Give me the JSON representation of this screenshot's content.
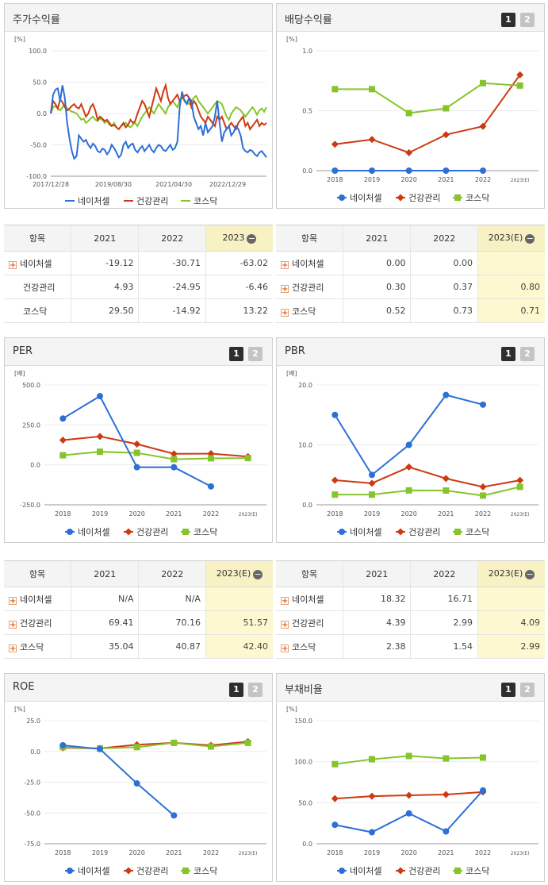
{
  "legend": {
    "s1": "네이처셀",
    "s2": "건강관리",
    "s3": "코스닥"
  },
  "colors": {
    "s1": "#2d6fd6",
    "s2": "#cd3a12",
    "s3": "#86c42e"
  },
  "toggle": {
    "b1": "1",
    "b2": "2"
  },
  "tables": [
    {
      "headers": [
        "항목",
        "2021",
        "2022",
        "2023"
      ],
      "minus": "−",
      "rows": [
        {
          "label": "네이처셀",
          "plus": true,
          "values": [
            "-19.12",
            "-30.71",
            "-63.02"
          ]
        },
        {
          "label": "건강관리",
          "plus": false,
          "values": [
            "4.93",
            "-24.95",
            "-6.46"
          ]
        },
        {
          "label": "코스닥",
          "plus": false,
          "values": [
            "29.50",
            "-14.92",
            "13.22"
          ]
        }
      ]
    },
    {
      "headers": [
        "항목",
        "2021",
        "2022",
        "2023(E)"
      ],
      "minus": "−",
      "rows": [
        {
          "label": "네이처셀",
          "plus": true,
          "values": [
            "0.00",
            "0.00",
            ""
          ]
        },
        {
          "label": "건강관리",
          "plus": true,
          "values": [
            "0.30",
            "0.37",
            "0.80"
          ]
        },
        {
          "label": "코스닥",
          "plus": true,
          "values": [
            "0.52",
            "0.73",
            "0.71"
          ]
        }
      ]
    },
    {
      "headers": [
        "항목",
        "2021",
        "2022",
        "2023(E)"
      ],
      "minus": "−",
      "rows": [
        {
          "label": "네이처셀",
          "plus": true,
          "values": [
            "N/A",
            "N/A",
            ""
          ]
        },
        {
          "label": "건강관리",
          "plus": true,
          "values": [
            "69.41",
            "70.16",
            "51.57"
          ]
        },
        {
          "label": "코스닥",
          "plus": true,
          "values": [
            "35.04",
            "40.87",
            "42.40"
          ]
        }
      ]
    },
    {
      "headers": [
        "항목",
        "2021",
        "2022",
        "2023(E)"
      ],
      "minus": "−",
      "rows": [
        {
          "label": "네이처셀",
          "plus": true,
          "values": [
            "18.32",
            "16.71",
            ""
          ]
        },
        {
          "label": "건강관리",
          "plus": true,
          "values": [
            "4.39",
            "2.99",
            "4.09"
          ]
        },
        {
          "label": "코스닥",
          "plus": true,
          "values": [
            "2.38",
            "1.54",
            "2.99"
          ]
        }
      ]
    }
  ],
  "chart_data": [
    {
      "type": "line",
      "title": "주가수익률",
      "unit": "[%]",
      "ylim": [
        -100,
        100
      ],
      "yticks": [
        "100.0",
        "50.0",
        "0.0",
        "-50.0",
        "-100.0"
      ],
      "xtick_labels": [
        "2017/12/28",
        "2019/08/30",
        "2021/04/30",
        "2022/12/29"
      ],
      "series": [
        {
          "name": "네이처셀",
          "values": [
            0,
            30,
            38,
            40,
            20,
            45,
            25,
            -15,
            -40,
            -60,
            -72,
            -68,
            -35,
            -40,
            -45,
            -42,
            -50,
            -55,
            -48,
            -52,
            -60,
            -62,
            -56,
            -58,
            -65,
            -60,
            -50,
            -55,
            -62,
            -70,
            -66,
            -50,
            -45,
            -55,
            -50,
            -48,
            -58,
            -62,
            -56,
            -52,
            -60,
            -55,
            -50,
            -58,
            -62,
            -55,
            -50,
            -52,
            -58,
            -60,
            -55,
            -50,
            -58,
            -55,
            -45,
            10,
            35,
            20,
            15,
            25,
            20,
            -5,
            -15,
            -25,
            -20,
            -35,
            -15,
            -30,
            -25,
            -20,
            -5,
            20,
            -15,
            -45,
            -30,
            -25,
            -20,
            -35,
            -30,
            -20,
            -25,
            -35,
            -55,
            -60,
            -62,
            -58,
            -60,
            -65,
            -68,
            -62,
            -60,
            -65,
            -70
          ]
        },
        {
          "name": "건강관리",
          "values": [
            0,
            20,
            15,
            8,
            22,
            18,
            10,
            5,
            8,
            12,
            15,
            10,
            8,
            15,
            5,
            -5,
            0,
            10,
            15,
            5,
            -10,
            -5,
            -8,
            -12,
            -10,
            -15,
            -20,
            -18,
            -22,
            -25,
            -20,
            -15,
            -22,
            -18,
            -10,
            -15,
            -12,
            0,
            10,
            20,
            15,
            5,
            -5,
            10,
            25,
            40,
            30,
            20,
            35,
            45,
            25,
            15,
            20,
            25,
            30,
            20,
            25,
            28,
            30,
            25,
            10,
            20,
            15,
            5,
            -5,
            -10,
            -15,
            -5,
            -10,
            -15,
            -20,
            -5,
            -10,
            -5,
            -15,
            -25,
            -20,
            -15,
            -20,
            -25,
            -15,
            -10,
            -5,
            -20,
            -15,
            -25,
            -20,
            -15,
            -10,
            -20,
            -15,
            -18,
            -15
          ]
        },
        {
          "name": "코스닥",
          "values": [
            0,
            10,
            12,
            8,
            5,
            10,
            15,
            8,
            5,
            3,
            2,
            0,
            -5,
            -10,
            -8,
            -15,
            -12,
            -8,
            -5,
            -10,
            -12,
            -8,
            -10,
            -15,
            -12,
            -18,
            -20,
            -15,
            -22,
            -25,
            -20,
            -18,
            -15,
            -20,
            -22,
            -18,
            -15,
            -20,
            -12,
            -5,
            0,
            5,
            10,
            5,
            0,
            8,
            15,
            10,
            5,
            0,
            10,
            15,
            20,
            15,
            10,
            20,
            25,
            22,
            18,
            15,
            20,
            25,
            28,
            20,
            15,
            10,
            5,
            0,
            5,
            10,
            15,
            20,
            18,
            15,
            5,
            -5,
            -10,
            0,
            5,
            10,
            8,
            5,
            0,
            -5,
            0,
            5,
            10,
            5,
            -2,
            5,
            8,
            3,
            10
          ]
        }
      ]
    },
    {
      "type": "line",
      "title": "배당수익률",
      "unit": "[%]",
      "categories": [
        "2018",
        "2019",
        "2020",
        "2021",
        "2022",
        "2023(E)"
      ],
      "ylim": [
        0,
        1.0
      ],
      "yticks": [
        "1.0",
        "0.5",
        "0.0"
      ],
      "series": [
        {
          "name": "네이처셀",
          "values": [
            0.0,
            0.0,
            0.0,
            0.0,
            0.0,
            null
          ]
        },
        {
          "name": "건강관리",
          "values": [
            0.22,
            0.26,
            0.15,
            0.3,
            0.37,
            0.8
          ]
        },
        {
          "name": "코스닥",
          "values": [
            0.68,
            0.68,
            0.48,
            0.52,
            0.73,
            0.71
          ]
        }
      ]
    },
    {
      "type": "line",
      "title": "PER",
      "unit": "[배]",
      "categories": [
        "2018",
        "2019",
        "2020",
        "2021",
        "2022",
        "2023(E)"
      ],
      "ylim": [
        -250,
        500
      ],
      "yticks": [
        "500.0",
        "250.0",
        "0.0",
        "-250.0"
      ],
      "series": [
        {
          "name": "네이처셀",
          "values": [
            290,
            430,
            -15,
            -15,
            -135,
            null
          ]
        },
        {
          "name": "건강관리",
          "values": [
            155,
            178,
            130,
            69.41,
            70.16,
            51.57
          ]
        },
        {
          "name": "코스닥",
          "values": [
            60,
            82,
            75,
            35.04,
            40.87,
            42.4
          ]
        }
      ]
    },
    {
      "type": "line",
      "title": "PBR",
      "unit": "[배]",
      "categories": [
        "2018",
        "2019",
        "2020",
        "2021",
        "2022",
        "2023(E)"
      ],
      "ylim": [
        0,
        20
      ],
      "yticks": [
        "20.0",
        "10.0",
        "0.0"
      ],
      "series": [
        {
          "name": "네이처셀",
          "values": [
            15.0,
            5.0,
            10.0,
            18.32,
            16.71,
            null
          ]
        },
        {
          "name": "건강관리",
          "values": [
            4.1,
            3.6,
            6.3,
            4.39,
            2.99,
            4.09
          ]
        },
        {
          "name": "코스닥",
          "values": [
            1.7,
            1.7,
            2.4,
            2.38,
            1.54,
            2.99
          ]
        }
      ]
    },
    {
      "type": "line",
      "title": "ROE",
      "unit": "[%]",
      "categories": [
        "2018",
        "2019",
        "2020",
        "2021",
        "2022",
        "2023(E)"
      ],
      "ylim": [
        -75,
        25
      ],
      "yticks": [
        "25.0",
        "0.0",
        "-25.0",
        "-50.0",
        "-75.0"
      ],
      "series": [
        {
          "name": "네이처셀",
          "values": [
            5,
            2,
            -26,
            -52,
            null,
            null
          ]
        },
        {
          "name": "건강관리",
          "values": [
            3,
            2.5,
            5.5,
            7,
            5,
            8
          ]
        },
        {
          "name": "코스닥",
          "values": [
            3.5,
            2.5,
            3.5,
            7,
            4,
            7
          ]
        }
      ]
    },
    {
      "type": "line",
      "title": "부채비율",
      "unit": "[%]",
      "categories": [
        "2018",
        "2019",
        "2020",
        "2021",
        "2022",
        "2023(E)"
      ],
      "ylim": [
        0,
        150
      ],
      "yticks": [
        "150.0",
        "100.0",
        "50.0",
        "0.0"
      ],
      "series": [
        {
          "name": "네이처셀",
          "values": [
            23,
            14,
            37,
            15,
            65,
            null
          ]
        },
        {
          "name": "건강관리",
          "values": [
            55,
            58,
            59,
            60,
            63,
            null
          ]
        },
        {
          "name": "코스닥",
          "values": [
            97,
            103,
            107,
            104,
            105,
            null
          ]
        }
      ]
    }
  ]
}
